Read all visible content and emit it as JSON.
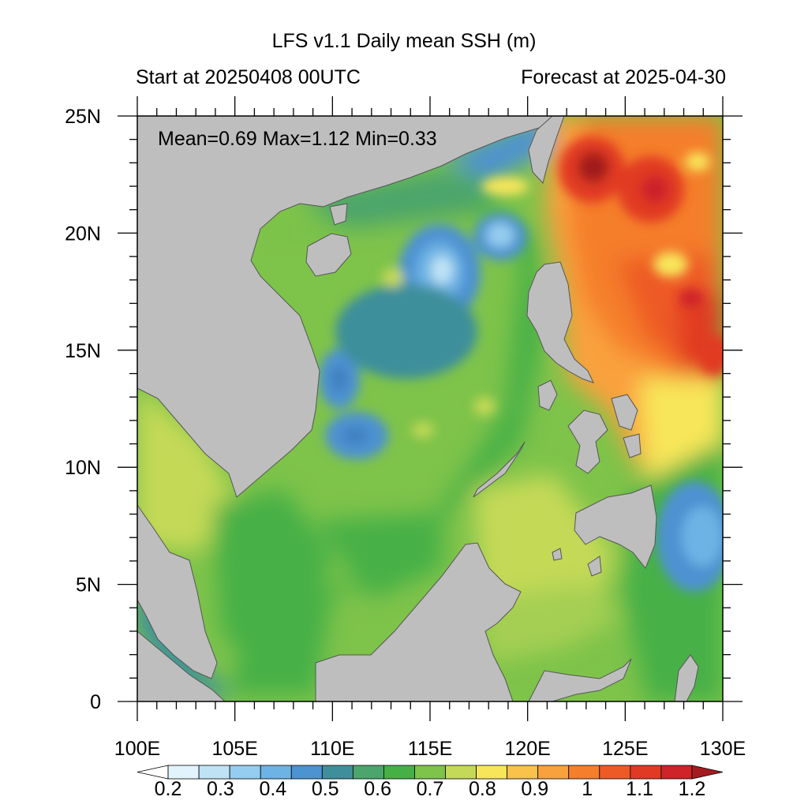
{
  "header": {
    "title": "LFS v1.1 Daily mean SSH (m)",
    "start_label": "Start at 20250408 00UTC",
    "forecast_label": "Forecast at 2025-04-30"
  },
  "stats": {
    "text": "Mean=0.69  Max=1.12  Min=0.33"
  },
  "map": {
    "variable": "Daily mean SSH",
    "units": "m",
    "lon_range": [
      100,
      130
    ],
    "lat_range": [
      0,
      25
    ],
    "lon_ticks": [
      {
        "value": 100,
        "label": "100E"
      },
      {
        "value": 105,
        "label": "105E"
      },
      {
        "value": 110,
        "label": "110E"
      },
      {
        "value": 115,
        "label": "115E"
      },
      {
        "value": 120,
        "label": "120E"
      },
      {
        "value": 125,
        "label": "125E"
      },
      {
        "value": 130,
        "label": "130E"
      }
    ],
    "lat_ticks": [
      {
        "value": 0,
        "label": "0"
      },
      {
        "value": 5,
        "label": "5N"
      },
      {
        "value": 10,
        "label": "10N"
      },
      {
        "value": 15,
        "label": "15N"
      },
      {
        "value": 20,
        "label": "20N"
      },
      {
        "value": 25,
        "label": "25N"
      }
    ],
    "land_color": "#bebebe",
    "ocean_base_color": "#7ec34a",
    "ssh_features": [
      {
        "lon": 123.2,
        "lat": 22.8,
        "value": 1.12,
        "color": "#a31b1f"
      },
      {
        "lon": 126.5,
        "lat": 21.5,
        "value": 1.05,
        "color": "#c8242a"
      },
      {
        "lon": 128.5,
        "lat": 17.2,
        "value": 1.05,
        "color": "#c8242a"
      },
      {
        "lon": 129.5,
        "lat": 15.0,
        "value": 1.0,
        "color": "#dd3b27"
      },
      {
        "lon": 115.7,
        "lat": 18.3,
        "value": 0.33,
        "color": "#a9d6ee"
      },
      {
        "lon": 118.6,
        "lat": 20.0,
        "value": 0.4,
        "color": "#6aa9dc"
      },
      {
        "lon": 110.3,
        "lat": 13.7,
        "value": 0.45,
        "color": "#4c8fcc"
      },
      {
        "lon": 111.2,
        "lat": 11.3,
        "value": 0.48,
        "color": "#3e7fbf"
      },
      {
        "lon": 128.7,
        "lat": 7.5,
        "value": 0.4,
        "color": "#4d92d1"
      },
      {
        "lon": 125.5,
        "lat": 23.5,
        "value": 0.8,
        "color": "#fbd94e"
      },
      {
        "lon": 100.8,
        "lat": 4.0,
        "value": 0.55,
        "color": "#3f9e7a"
      }
    ],
    "colorbar": {
      "levels": [
        "0.2",
        "0.3",
        "0.4",
        "0.5",
        "0.6",
        "0.7",
        "0.8",
        "0.9",
        "1",
        "1.1",
        "1.2"
      ],
      "colors": [
        "#ffffff",
        "#e2f3fb",
        "#bfe3f5",
        "#94cdef",
        "#6db3e4",
        "#4d92d1",
        "#3e8f9b",
        "#4ba56c",
        "#46b047",
        "#7ec34a",
        "#c4d957",
        "#f8e65a",
        "#fbc24b",
        "#f9a13c",
        "#f57e2c",
        "#ee5a26",
        "#e13a24",
        "#cd2329",
        "#a31b1f"
      ]
    }
  }
}
